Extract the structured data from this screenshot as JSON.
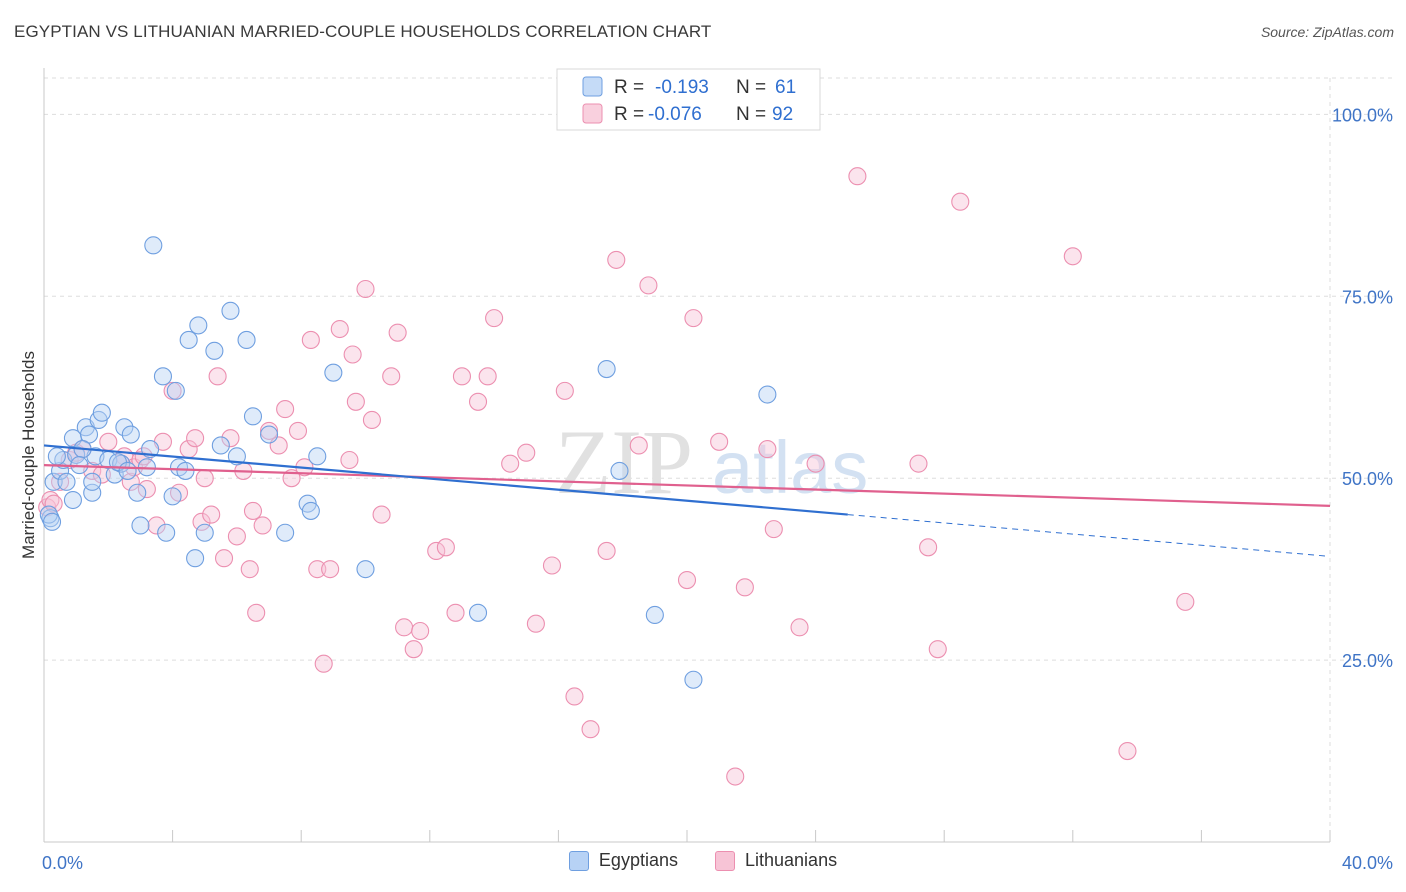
{
  "header": {
    "title": "EGYPTIAN VS LITHUANIAN MARRIED-COUPLE HOUSEHOLDS CORRELATION CHART",
    "source": "Source: ZipAtlas.com"
  },
  "watermark": {
    "zip": "ZIP",
    "atlas": "atlas"
  },
  "colors": {
    "egyptians_fill": "#b7d2f5",
    "egyptians_stroke": "#6f9fe0",
    "egyptians_line": "#2f6fd0",
    "lithuanians_fill": "#f7c4d6",
    "lithuanians_stroke": "#ec8fb0",
    "lithuanians_line": "#e0608e",
    "axis_text": "#3f74c6",
    "grid": "#dddddd"
  },
  "stats": {
    "r_label": "R =",
    "n_label": "N =",
    "egyptians": {
      "r": "-0.193",
      "n": "61"
    },
    "lithuanians": {
      "r": "-0.076",
      "n": "92"
    }
  },
  "chart_data": {
    "type": "scatter",
    "title": "EGYPTIAN VS LITHUANIAN MARRIED-COUPLE HOUSEHOLDS CORRELATION CHART",
    "xlabel": "",
    "ylabel": "Married-couple Households",
    "xlim": [
      0,
      40
    ],
    "ylim": [
      0,
      105
    ],
    "x_tick_labels": [
      "0.0%",
      "40.0%"
    ],
    "y_ticks": [
      25,
      50,
      75,
      100
    ],
    "y_tick_labels": [
      "25.0%",
      "50.0%",
      "75.0%",
      "100.0%"
    ],
    "legend": [
      "Egyptians",
      "Lithuanians"
    ],
    "series": [
      {
        "name": "Egyptians",
        "trend": {
          "x0": 0,
          "y0": 54.5,
          "x1": 25,
          "y1": 45.0,
          "dash_to_x": 40,
          "dash_to_y": 39.3
        },
        "points": [
          [
            0.2,
            44.5
          ],
          [
            0.3,
            49.5
          ],
          [
            0.5,
            51
          ],
          [
            0.6,
            52.5
          ],
          [
            0.7,
            49.5
          ],
          [
            0.9,
            47
          ],
          [
            0.9,
            55.5
          ],
          [
            1.0,
            53.2
          ],
          [
            1.3,
            57
          ],
          [
            1.4,
            56
          ],
          [
            1.5,
            48
          ],
          [
            1.5,
            49.5
          ],
          [
            1.6,
            53
          ],
          [
            1.7,
            58
          ],
          [
            1.8,
            59
          ],
          [
            2.0,
            52.5
          ],
          [
            2.2,
            50.5
          ],
          [
            2.4,
            52
          ],
          [
            2.5,
            57
          ],
          [
            2.7,
            56
          ],
          [
            2.9,
            48
          ],
          [
            3.0,
            43.5
          ],
          [
            3.2,
            51.5
          ],
          [
            3.3,
            54
          ],
          [
            3.4,
            82
          ],
          [
            3.7,
            64
          ],
          [
            3.8,
            42.5
          ],
          [
            4.0,
            47.5
          ],
          [
            4.1,
            62
          ],
          [
            4.2,
            51.5
          ],
          [
            4.4,
            51
          ],
          [
            4.5,
            69
          ],
          [
            4.7,
            39
          ],
          [
            4.8,
            71
          ],
          [
            5.0,
            42.5
          ],
          [
            5.3,
            67.5
          ],
          [
            5.5,
            54.5
          ],
          [
            5.8,
            73
          ],
          [
            6.0,
            53
          ],
          [
            6.3,
            69
          ],
          [
            6.5,
            58.5
          ],
          [
            7.0,
            56
          ],
          [
            7.5,
            42.5
          ],
          [
            8.2,
            46.5
          ],
          [
            8.3,
            45.5
          ],
          [
            8.5,
            53
          ],
          [
            9.0,
            64.5
          ],
          [
            10.0,
            37.5
          ],
          [
            13.5,
            31.5
          ],
          [
            17.5,
            65
          ],
          [
            17.9,
            51
          ],
          [
            19.0,
            31.2
          ],
          [
            20.2,
            22.3
          ],
          [
            22.5,
            61.5
          ],
          [
            0.15,
            45
          ],
          [
            0.25,
            44
          ],
          [
            1.2,
            54
          ],
          [
            2.3,
            52.2
          ],
          [
            2.6,
            51
          ],
          [
            0.4,
            53
          ],
          [
            1.1,
            51.8
          ]
        ]
      },
      {
        "name": "Lithuanians",
        "trend": {
          "x0": 0,
          "y0": 51.8,
          "x1": 40,
          "y1": 46.2
        },
        "points": [
          [
            0.1,
            46
          ],
          [
            0.2,
            47
          ],
          [
            0.5,
            49.5
          ],
          [
            0.8,
            52.5
          ],
          [
            1.0,
            53.5
          ],
          [
            1.2,
            54
          ],
          [
            1.5,
            51
          ],
          [
            2.0,
            55
          ],
          [
            2.5,
            53
          ],
          [
            2.7,
            49.5
          ],
          [
            2.8,
            51.5
          ],
          [
            3.0,
            52.5
          ],
          [
            3.2,
            48.5
          ],
          [
            3.5,
            43.5
          ],
          [
            3.7,
            55
          ],
          [
            4.0,
            62
          ],
          [
            4.2,
            48
          ],
          [
            4.5,
            54
          ],
          [
            4.7,
            55.5
          ],
          [
            4.9,
            44
          ],
          [
            5.0,
            50
          ],
          [
            5.2,
            45
          ],
          [
            5.4,
            64
          ],
          [
            5.6,
            39
          ],
          [
            5.8,
            55.5
          ],
          [
            6.0,
            42
          ],
          [
            6.2,
            51
          ],
          [
            6.4,
            37.5
          ],
          [
            6.6,
            31.5
          ],
          [
            6.8,
            43.5
          ],
          [
            7.0,
            56.5
          ],
          [
            7.3,
            54.5
          ],
          [
            7.5,
            59.5
          ],
          [
            7.7,
            50
          ],
          [
            7.9,
            56.5
          ],
          [
            8.1,
            51.5
          ],
          [
            8.3,
            69
          ],
          [
            8.5,
            37.5
          ],
          [
            8.7,
            24.5
          ],
          [
            8.9,
            37.5
          ],
          [
            9.2,
            70.5
          ],
          [
            9.5,
            52.5
          ],
          [
            9.6,
            67
          ],
          [
            9.7,
            60.5
          ],
          [
            10.0,
            76
          ],
          [
            10.2,
            58
          ],
          [
            10.5,
            45
          ],
          [
            10.8,
            64
          ],
          [
            11.0,
            70
          ],
          [
            11.2,
            29.5
          ],
          [
            11.5,
            26.5
          ],
          [
            11.7,
            29
          ],
          [
            12.2,
            40
          ],
          [
            12.5,
            40.5
          ],
          [
            12.8,
            31.5
          ],
          [
            13.0,
            64
          ],
          [
            13.5,
            60.5
          ],
          [
            13.8,
            64
          ],
          [
            14.0,
            72
          ],
          [
            14.5,
            52
          ],
          [
            15.0,
            53.5
          ],
          [
            15.3,
            30
          ],
          [
            15.8,
            38
          ],
          [
            16.2,
            62
          ],
          [
            16.5,
            20
          ],
          [
            17.0,
            15.5
          ],
          [
            17.5,
            40
          ],
          [
            17.8,
            80
          ],
          [
            18.5,
            54.5
          ],
          [
            18.8,
            76.5
          ],
          [
            20.0,
            36
          ],
          [
            20.2,
            72
          ],
          [
            21.0,
            55
          ],
          [
            21.5,
            9
          ],
          [
            21.8,
            35
          ],
          [
            22.5,
            54
          ],
          [
            22.7,
            43
          ],
          [
            23.5,
            29.5
          ],
          [
            24.0,
            52
          ],
          [
            25.3,
            91.5
          ],
          [
            27.2,
            52
          ],
          [
            27.5,
            40.5
          ],
          [
            27.8,
            26.5
          ],
          [
            28.5,
            88
          ],
          [
            32,
            80.5
          ],
          [
            33.7,
            12.5
          ],
          [
            35.5,
            33
          ],
          [
            0.3,
            46.5
          ],
          [
            1.8,
            50.5
          ],
          [
            3.1,
            53
          ],
          [
            2.4,
            52
          ],
          [
            6.5,
            45.5
          ]
        ]
      }
    ]
  }
}
